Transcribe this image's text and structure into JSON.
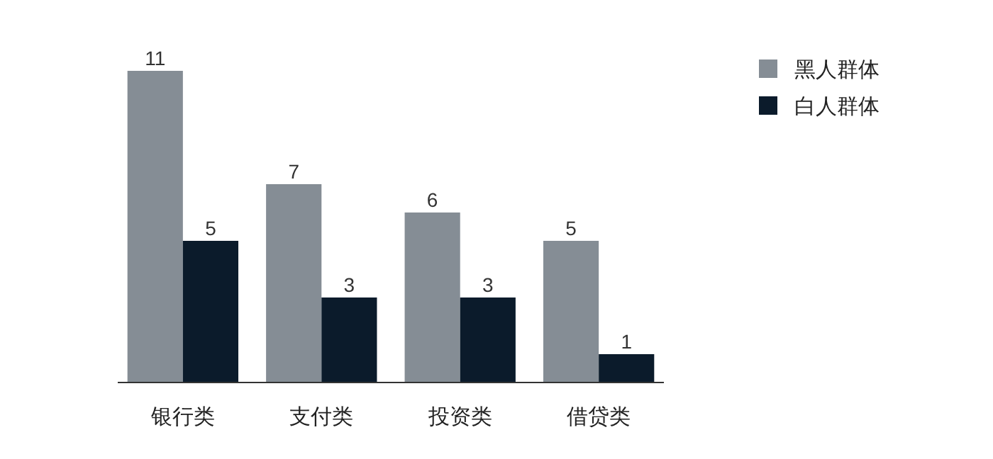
{
  "chart_data": {
    "type": "bar",
    "categories": [
      "银行类",
      "支付类",
      "投资类",
      "借贷类"
    ],
    "series": [
      {
        "name": "黑人群体",
        "color": "#858d95",
        "values": [
          11,
          7,
          6,
          5
        ]
      },
      {
        "name": "白人群体",
        "color": "#0b1b2b",
        "values": [
          5,
          3,
          3,
          1
        ]
      }
    ],
    "data_labels": true,
    "legend": "right",
    "grid": false
  }
}
